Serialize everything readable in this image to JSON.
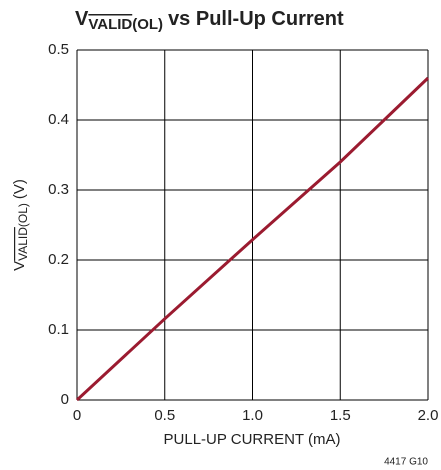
{
  "chart_data": {
    "type": "line",
    "title": [
      "V",
      "VALID",
      "(OL)",
      "vs Pull-Up Current"
    ],
    "ylabel": [
      "V",
      "VALID",
      "(OL)",
      "(V)"
    ],
    "xlabel": "PULL-UP CURRENT (mA)",
    "annotation": "4417 G10",
    "x": [
      0,
      0.5,
      1.0,
      1.5,
      2.0
    ],
    "series": [
      {
        "name": "VVALID(OL)",
        "color": "#9b1b30",
        "values": [
          0,
          0.116,
          0.229,
          0.34,
          0.46
        ]
      }
    ],
    "xlim": [
      0,
      2.0
    ],
    "xticks": [
      0,
      0.5,
      {
        "value": 1,
        "label": "1.0"
      },
      1.5,
      {
        "value": 2,
        "label": "2.0"
      }
    ],
    "ylim": [
      0,
      0.5
    ],
    "yticks": [
      0,
      0.1,
      0.2,
      0.3,
      0.4,
      0.5
    ],
    "grid": true
  }
}
